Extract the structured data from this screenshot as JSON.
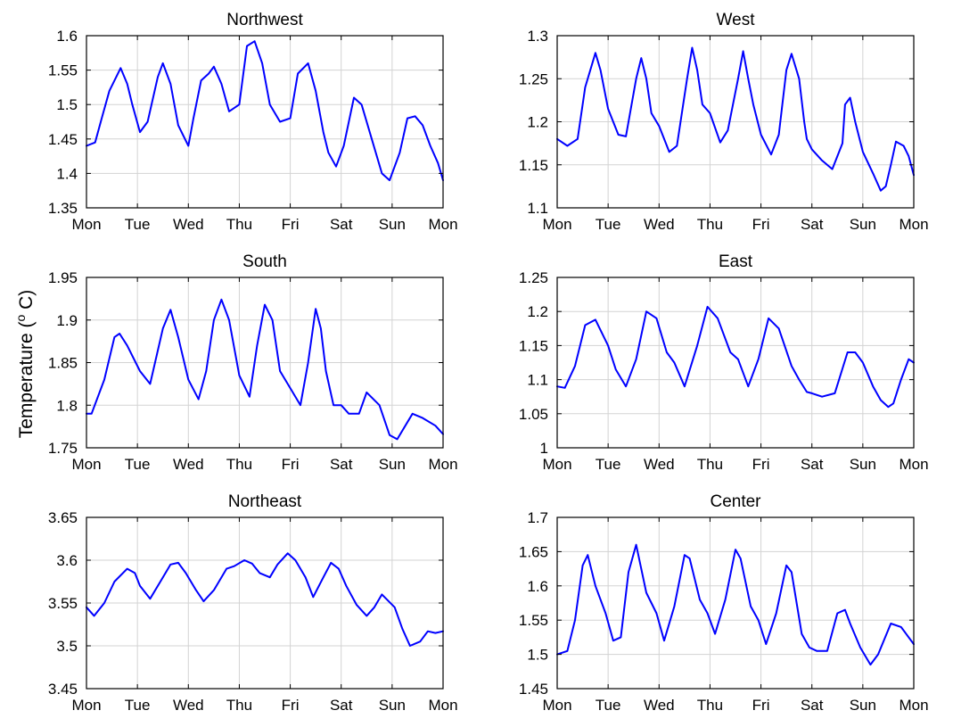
{
  "figure": {
    "ylabel_main": "Temperature (",
    "ylabel_sup": "o",
    "ylabel_tail": " C)",
    "line_color": "#0000ff",
    "grid": true
  },
  "chart_data": [
    {
      "type": "line",
      "title": "Northwest",
      "xticks": [
        "Mon",
        "Tue",
        "Wed",
        "Thu",
        "Fri",
        "Sat",
        "Sun",
        "Mon"
      ],
      "yticks": [
        "1.35",
        "1.4",
        "1.45",
        "1.5",
        "1.55",
        "1.6"
      ],
      "xlim": [
        0,
        7
      ],
      "ylim": [
        1.35,
        1.6
      ],
      "series": [
        {
          "x": [
            0,
            0.17,
            0.3,
            0.45,
            0.67,
            0.8,
            0.9,
            1.05,
            1.2,
            1.4,
            1.5,
            1.65,
            1.8,
            2.0,
            2.1,
            2.25,
            2.4,
            2.5,
            2.65,
            2.8,
            3.0,
            3.15,
            3.3,
            3.45,
            3.6,
            3.8,
            4.0,
            4.15,
            4.35,
            4.5,
            4.65,
            4.75,
            4.9,
            5.05,
            5.25,
            5.4,
            5.6,
            5.8,
            5.95,
            6.15,
            6.3,
            6.45,
            6.6,
            6.75,
            6.9,
            7.0
          ],
          "y": [
            1.44,
            1.445,
            1.48,
            1.52,
            1.553,
            1.53,
            1.5,
            1.46,
            1.475,
            1.54,
            1.56,
            1.53,
            1.47,
            1.44,
            1.48,
            1.535,
            1.545,
            1.555,
            1.53,
            1.49,
            1.5,
            1.585,
            1.592,
            1.56,
            1.5,
            1.475,
            1.48,
            1.545,
            1.56,
            1.52,
            1.46,
            1.43,
            1.41,
            1.44,
            1.51,
            1.5,
            1.45,
            1.4,
            1.39,
            1.43,
            1.48,
            1.483,
            1.47,
            1.44,
            1.415,
            1.39
          ]
        }
      ]
    },
    {
      "type": "line",
      "title": "West",
      "xticks": [
        "Mon",
        "Tue",
        "Wed",
        "Thu",
        "Fri",
        "Sat",
        "Sun",
        "Mon"
      ],
      "yticks": [
        "1.1",
        "1.15",
        "1.2",
        "1.25",
        "1.3"
      ],
      "xlim": [
        0,
        7
      ],
      "ylim": [
        1.1,
        1.3
      ],
      "series": [
        {
          "x": [
            0,
            0.2,
            0.4,
            0.55,
            0.75,
            0.85,
            1.0,
            1.2,
            1.35,
            1.55,
            1.65,
            1.75,
            1.85,
            2.0,
            2.2,
            2.35,
            2.55,
            2.65,
            2.75,
            2.85,
            3.0,
            3.2,
            3.35,
            3.55,
            3.65,
            3.75,
            3.85,
            4.0,
            4.2,
            4.35,
            4.5,
            4.6,
            4.75,
            4.85,
            4.9,
            5.0,
            5.2,
            5.4,
            5.6,
            5.65,
            5.75,
            5.85,
            6.0,
            6.2,
            6.35,
            6.45,
            6.55,
            6.65,
            6.8,
            6.9,
            7.0
          ],
          "y": [
            1.18,
            1.172,
            1.18,
            1.24,
            1.28,
            1.26,
            1.215,
            1.185,
            1.183,
            1.25,
            1.274,
            1.25,
            1.21,
            1.195,
            1.165,
            1.172,
            1.25,
            1.286,
            1.26,
            1.22,
            1.21,
            1.176,
            1.19,
            1.25,
            1.282,
            1.25,
            1.22,
            1.185,
            1.162,
            1.185,
            1.26,
            1.279,
            1.25,
            1.2,
            1.18,
            1.168,
            1.155,
            1.145,
            1.175,
            1.22,
            1.228,
            1.2,
            1.165,
            1.14,
            1.12,
            1.125,
            1.15,
            1.177,
            1.172,
            1.16,
            1.138
          ]
        }
      ]
    },
    {
      "type": "line",
      "title": "South",
      "xticks": [
        "Mon",
        "Tue",
        "Wed",
        "Thu",
        "Fri",
        "Sat",
        "Sun",
        "Mon"
      ],
      "yticks": [
        "1.75",
        "1.8",
        "1.85",
        "1.9",
        "1.95"
      ],
      "xlim": [
        0,
        7
      ],
      "ylim": [
        1.75,
        1.95
      ],
      "series": [
        {
          "x": [
            0,
            0.1,
            0.35,
            0.55,
            0.65,
            0.8,
            1.05,
            1.25,
            1.5,
            1.65,
            1.8,
            2.0,
            2.2,
            2.35,
            2.5,
            2.65,
            2.8,
            3.0,
            3.2,
            3.35,
            3.5,
            3.65,
            3.8,
            4.0,
            4.2,
            4.35,
            4.5,
            4.6,
            4.7,
            4.85,
            5.0,
            5.15,
            5.35,
            5.5,
            5.75,
            5.95,
            6.1,
            6.3,
            6.4,
            6.6,
            6.85,
            7.0
          ],
          "y": [
            1.79,
            1.79,
            1.83,
            1.88,
            1.884,
            1.87,
            1.84,
            1.825,
            1.89,
            1.912,
            1.88,
            1.83,
            1.807,
            1.84,
            1.9,
            1.924,
            1.9,
            1.835,
            1.81,
            1.87,
            1.918,
            1.9,
            1.84,
            1.82,
            1.8,
            1.85,
            1.913,
            1.89,
            1.84,
            1.8,
            1.8,
            1.79,
            1.79,
            1.815,
            1.8,
            1.765,
            1.76,
            1.78,
            1.79,
            1.785,
            1.776,
            1.766
          ]
        }
      ]
    },
    {
      "type": "line",
      "title": "East",
      "xticks": [
        "Mon",
        "Tue",
        "Wed",
        "Thu",
        "Fri",
        "Sat",
        "Sun",
        "Mon"
      ],
      "yticks": [
        "1",
        "1.05",
        "1.1",
        "1.15",
        "1.2",
        "1.25"
      ],
      "xlim": [
        0,
        7
      ],
      "ylim": [
        1.0,
        1.25
      ],
      "series": [
        {
          "x": [
            0,
            0.15,
            0.35,
            0.55,
            0.75,
            1.0,
            1.15,
            1.35,
            1.55,
            1.75,
            1.95,
            2.15,
            2.3,
            2.5,
            2.75,
            2.95,
            3.15,
            3.4,
            3.55,
            3.75,
            3.95,
            4.15,
            4.35,
            4.6,
            4.75,
            4.9,
            5.0,
            5.2,
            5.45,
            5.7,
            5.85,
            6.0,
            6.2,
            6.35,
            6.5,
            6.6,
            6.75,
            6.9,
            7.0
          ],
          "y": [
            1.09,
            1.088,
            1.12,
            1.18,
            1.188,
            1.15,
            1.115,
            1.09,
            1.13,
            1.2,
            1.19,
            1.14,
            1.125,
            1.09,
            1.15,
            1.207,
            1.19,
            1.14,
            1.13,
            1.09,
            1.13,
            1.19,
            1.175,
            1.12,
            1.1,
            1.082,
            1.08,
            1.075,
            1.08,
            1.14,
            1.14,
            1.125,
            1.09,
            1.07,
            1.06,
            1.065,
            1.1,
            1.13,
            1.125
          ]
        }
      ]
    },
    {
      "type": "line",
      "title": "Northeast",
      "xticks": [
        "Mon",
        "Tue",
        "Wed",
        "Thu",
        "Fri",
        "Sat",
        "Sun",
        "Mon"
      ],
      "yticks": [
        "3.45",
        "3.5",
        "3.55",
        "3.6",
        "3.65"
      ],
      "xlim": [
        0,
        7
      ],
      "ylim": [
        3.45,
        3.65
      ],
      "series": [
        {
          "x": [
            0,
            0.15,
            0.35,
            0.55,
            0.8,
            0.95,
            1.05,
            1.25,
            1.45,
            1.65,
            1.8,
            1.95,
            2.15,
            2.3,
            2.5,
            2.75,
            2.9,
            3.1,
            3.25,
            3.4,
            3.6,
            3.75,
            3.95,
            4.1,
            4.3,
            4.45,
            4.65,
            4.8,
            4.95,
            5.1,
            5.3,
            5.5,
            5.65,
            5.8,
            6.05,
            6.2,
            6.35,
            6.55,
            6.7,
            6.85,
            7.0
          ],
          "y": [
            3.545,
            3.535,
            3.55,
            3.575,
            3.59,
            3.585,
            3.57,
            3.555,
            3.575,
            3.595,
            3.597,
            3.585,
            3.565,
            3.552,
            3.565,
            3.59,
            3.593,
            3.6,
            3.596,
            3.585,
            3.58,
            3.595,
            3.608,
            3.6,
            3.58,
            3.557,
            3.58,
            3.597,
            3.59,
            3.57,
            3.548,
            3.535,
            3.545,
            3.56,
            3.545,
            3.52,
            3.5,
            3.505,
            3.517,
            3.515,
            3.517
          ]
        }
      ]
    },
    {
      "type": "line",
      "title": "Center",
      "xticks": [
        "Mon",
        "Tue",
        "Wed",
        "Thu",
        "Fri",
        "Sat",
        "Sun",
        "Mon"
      ],
      "yticks": [
        "1.45",
        "1.5",
        "1.55",
        "1.6",
        "1.65",
        "1.7"
      ],
      "xlim": [
        0,
        7
      ],
      "ylim": [
        1.45,
        1.7
      ],
      "series": [
        {
          "x": [
            0,
            0.2,
            0.35,
            0.5,
            0.6,
            0.75,
            0.95,
            1.1,
            1.25,
            1.4,
            1.55,
            1.75,
            1.95,
            2.1,
            2.3,
            2.5,
            2.6,
            2.8,
            2.95,
            3.1,
            3.3,
            3.5,
            3.6,
            3.8,
            3.95,
            4.1,
            4.3,
            4.5,
            4.6,
            4.8,
            4.95,
            5.1,
            5.3,
            5.5,
            5.65,
            5.75,
            5.95,
            6.15,
            6.3,
            6.55,
            6.75,
            7.0
          ],
          "y": [
            1.5,
            1.505,
            1.55,
            1.63,
            1.645,
            1.6,
            1.56,
            1.52,
            1.525,
            1.62,
            1.66,
            1.59,
            1.56,
            1.52,
            1.57,
            1.645,
            1.64,
            1.58,
            1.56,
            1.53,
            1.58,
            1.653,
            1.64,
            1.57,
            1.55,
            1.515,
            1.56,
            1.63,
            1.62,
            1.53,
            1.51,
            1.505,
            1.505,
            1.56,
            1.565,
            1.545,
            1.51,
            1.485,
            1.5,
            1.545,
            1.54,
            1.515
          ]
        }
      ]
    }
  ]
}
